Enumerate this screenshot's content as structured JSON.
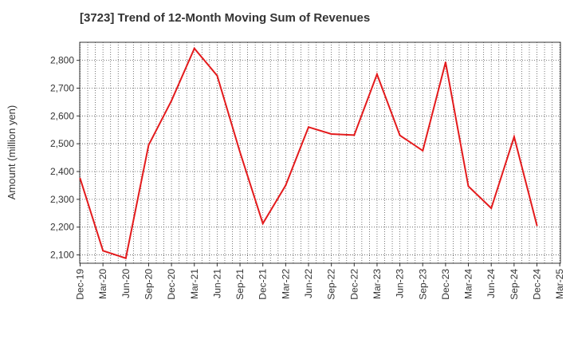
{
  "chart_data": {
    "type": "line",
    "title": "[3723]  Trend of 12-Month Moving Sum of Revenues",
    "xlabel": "",
    "ylabel": "Amount (million yen)",
    "categories": [
      "Dec-19",
      "Mar-20",
      "Jun-20",
      "Sep-20",
      "Dec-20",
      "Mar-21",
      "Jun-21",
      "Sep-21",
      "Dec-21",
      "Mar-22",
      "Jun-22",
      "Sep-22",
      "Dec-22",
      "Mar-23",
      "Jun-23",
      "Sep-23",
      "Dec-23",
      "Mar-24",
      "Jun-24",
      "Sep-24",
      "Dec-24",
      "Mar-25"
    ],
    "series": [
      {
        "name": "",
        "color": "#e31a1c",
        "values": [
          2375,
          2115,
          2088,
          2495,
          2655,
          2843,
          2745,
          2470,
          2213,
          2350,
          2560,
          2535,
          2531,
          2750,
          2530,
          2475,
          2793,
          2347,
          2268,
          2525,
          2206,
          null
        ]
      }
    ],
    "yticks": [
      2100,
      2200,
      2300,
      2400,
      2500,
      2600,
      2700,
      2800
    ],
    "ytick_labels": [
      "2,100",
      "2,200",
      "2,300",
      "2,400",
      "2,500",
      "2,600",
      "2,700",
      "2,800"
    ],
    "ylim": [
      2070,
      2865
    ],
    "grid": true,
    "legend": "none"
  }
}
